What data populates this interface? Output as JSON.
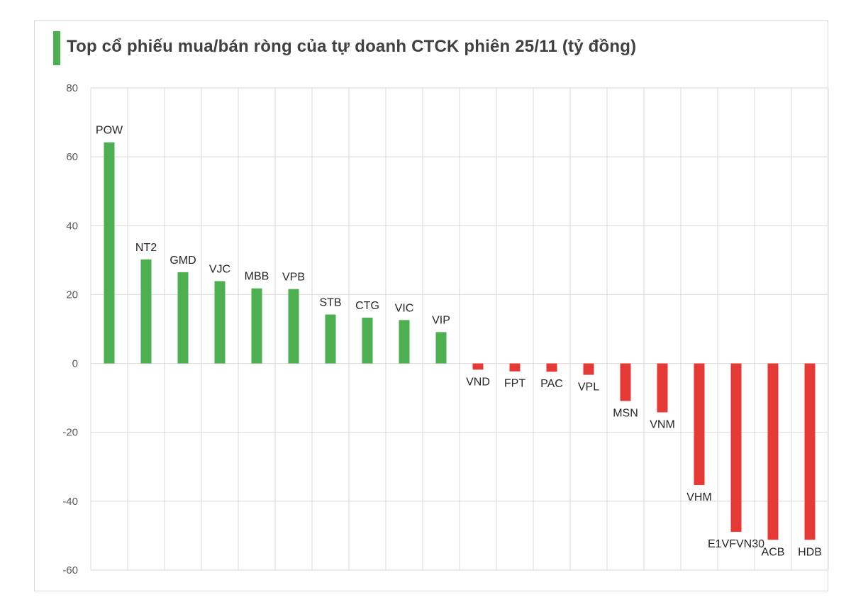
{
  "title": "Top cổ phiếu mua/bán ròng của tự doanh CTCK phiên 25/11 (tỷ đồng)",
  "colors": {
    "positive": "#4caf50",
    "negative": "#e53935",
    "title_bar": "#4caf50",
    "grid": "#d9d9d9"
  },
  "chart_data": {
    "type": "bar",
    "title": "Top cổ phiếu mua/bán ròng của tự doanh CTCK phiên 25/11 (tỷ đồng)",
    "xlabel": "",
    "ylabel": "",
    "ylim": [
      -60,
      80
    ],
    "yticks": [
      80,
      60,
      40,
      20,
      0,
      -20,
      -40,
      -60
    ],
    "grid": true,
    "categories": [
      "POW",
      "NT2",
      "GMD",
      "VJC",
      "MBB",
      "VPB",
      "STB",
      "CTG",
      "VIC",
      "VIP",
      "VND",
      "FPT",
      "PAC",
      "VPL",
      "MSN",
      "VNM",
      "VHM",
      "E1VFVN30",
      "ACB",
      "HDB"
    ],
    "values": [
      64.2,
      30.2,
      26.5,
      23.9,
      21.8,
      21.6,
      14.2,
      13.3,
      12.6,
      9.1,
      -1.8,
      -2.3,
      -2.4,
      -3.3,
      -10.9,
      -14.2,
      -35.3,
      -48.9,
      -51.2,
      -51.2
    ]
  }
}
